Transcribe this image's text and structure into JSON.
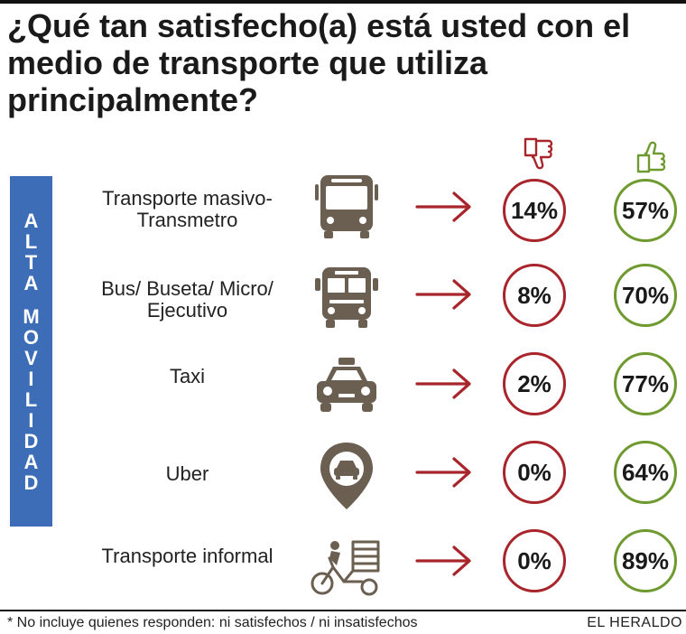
{
  "title": "¿Qué tan satisfecho(a) está usted con el medio de transporte que utiliza principalmente?",
  "side_label": {
    "words": [
      "ALTA",
      "MOVILIDAD"
    ]
  },
  "legend": {
    "unsatisfied_icon": "thumbs-down-icon",
    "satisfied_icon": "thumbs-up-icon",
    "unsatisfied_color": "#a8262b",
    "satisfied_color": "#6f9a2f"
  },
  "rows": [
    {
      "label_lines": [
        "Transporte masivo-",
        "Transmetro"
      ],
      "icon": "bus-icon",
      "unsatisfied": "14%",
      "satisfied": "57%"
    },
    {
      "label_lines": [
        "Bus/ Buseta/ Micro/",
        "Ejecutivo"
      ],
      "icon": "school-bus-icon",
      "unsatisfied": "8%",
      "satisfied": "70%"
    },
    {
      "label_lines": [
        "Taxi"
      ],
      "icon": "taxi-icon",
      "unsatisfied": "2%",
      "satisfied": "77%"
    },
    {
      "label_lines": [
        "Uber"
      ],
      "icon": "car-pin-icon",
      "unsatisfied": "0%",
      "satisfied": "64%"
    },
    {
      "label_lines": [
        "Transporte informal"
      ],
      "icon": "tricycle-icon",
      "unsatisfied": "0%",
      "satisfied": "89%"
    }
  ],
  "chart_data": {
    "type": "table",
    "categories": [
      "Transporte masivo-Transmetro",
      "Bus/ Buseta/ Micro/ Ejecutivo",
      "Taxi",
      "Uber",
      "Transporte informal"
    ],
    "series": [
      {
        "values": [
          14,
          8,
          2,
          0,
          0
        ]
      },
      {
        "values": [
          57,
          70,
          77,
          64,
          89
        ]
      }
    ]
  },
  "footnote": "* No incluye quienes responden: ni satisfechos / ni insatisfechos",
  "brand": "EL HERALDO"
}
